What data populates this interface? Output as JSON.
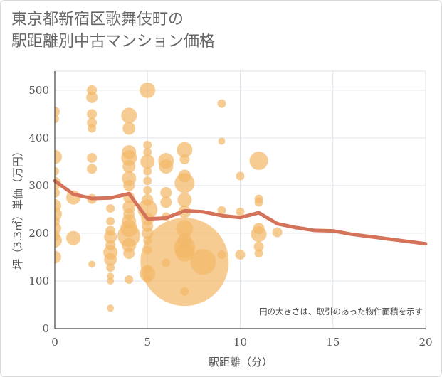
{
  "chart_data": {
    "type": "scatter",
    "title_lines": [
      "東京都新宿区歌舞伎町の",
      "駅距離別中古マンション価格"
    ],
    "xlabel": "駅距離（分）",
    "ylabel": "坪（3.3㎡）単価（万円）",
    "annotation": "円の大きさは、取引のあった物件面積を示す",
    "xlim": [
      0,
      20
    ],
    "ylim": [
      0,
      540
    ],
    "x_ticks": [
      0,
      5,
      10,
      15,
      20
    ],
    "y_ticks": [
      0,
      100,
      200,
      300,
      400,
      500
    ],
    "grid": true,
    "colors": {
      "bubble": "#f2b96a",
      "line": "#d4735a",
      "grid": "#dfe4ea",
      "axis": "#444444"
    },
    "bubbles": [
      {
        "x": 0,
        "y": 455,
        "s": 7
      },
      {
        "x": 0,
        "y": 440,
        "s": 6
      },
      {
        "x": 0,
        "y": 360,
        "s": 10
      },
      {
        "x": 0,
        "y": 330,
        "s": 6
      },
      {
        "x": 0,
        "y": 305,
        "s": 9
      },
      {
        "x": 0,
        "y": 285,
        "s": 7
      },
      {
        "x": 0,
        "y": 258,
        "s": 9
      },
      {
        "x": 0,
        "y": 240,
        "s": 10
      },
      {
        "x": 0,
        "y": 225,
        "s": 7
      },
      {
        "x": 0,
        "y": 210,
        "s": 9
      },
      {
        "x": 0,
        "y": 195,
        "s": 7
      },
      {
        "x": 0,
        "y": 185,
        "s": 10
      },
      {
        "x": 0,
        "y": 150,
        "s": 9
      },
      {
        "x": 1,
        "y": 275,
        "s": 10
      },
      {
        "x": 1,
        "y": 190,
        "s": 10
      },
      {
        "x": 2,
        "y": 500,
        "s": 7
      },
      {
        "x": 2,
        "y": 485,
        "s": 8
      },
      {
        "x": 2,
        "y": 450,
        "s": 7
      },
      {
        "x": 2,
        "y": 432,
        "s": 7
      },
      {
        "x": 2,
        "y": 420,
        "s": 6
      },
      {
        "x": 2,
        "y": 358,
        "s": 7
      },
      {
        "x": 2,
        "y": 335,
        "s": 7
      },
      {
        "x": 2,
        "y": 272,
        "s": 7
      },
      {
        "x": 2,
        "y": 135,
        "s": 5
      },
      {
        "x": 3,
        "y": 252,
        "s": 6
      },
      {
        "x": 3,
        "y": 225,
        "s": 6
      },
      {
        "x": 3,
        "y": 205,
        "s": 7
      },
      {
        "x": 3,
        "y": 192,
        "s": 9
      },
      {
        "x": 3,
        "y": 175,
        "s": 7
      },
      {
        "x": 3,
        "y": 160,
        "s": 10
      },
      {
        "x": 3,
        "y": 145,
        "s": 9
      },
      {
        "x": 3,
        "y": 128,
        "s": 6
      },
      {
        "x": 3,
        "y": 110,
        "s": 5
      },
      {
        "x": 3,
        "y": 100,
        "s": 5
      },
      {
        "x": 3,
        "y": 43,
        "s": 5
      },
      {
        "x": 4,
        "y": 447,
        "s": 11
      },
      {
        "x": 4,
        "y": 420,
        "s": 9
      },
      {
        "x": 4,
        "y": 370,
        "s": 10
      },
      {
        "x": 4,
        "y": 358,
        "s": 11
      },
      {
        "x": 4,
        "y": 340,
        "s": 9
      },
      {
        "x": 4,
        "y": 315,
        "s": 10
      },
      {
        "x": 4,
        "y": 300,
        "s": 8
      },
      {
        "x": 4,
        "y": 275,
        "s": 8
      },
      {
        "x": 4,
        "y": 255,
        "s": 9
      },
      {
        "x": 4,
        "y": 240,
        "s": 8
      },
      {
        "x": 4,
        "y": 225,
        "s": 10
      },
      {
        "x": 4,
        "y": 210,
        "s": 12
      },
      {
        "x": 4,
        "y": 195,
        "s": 16
      },
      {
        "x": 4,
        "y": 175,
        "s": 10
      },
      {
        "x": 4,
        "y": 158,
        "s": 8
      },
      {
        "x": 4,
        "y": 103,
        "s": 6
      },
      {
        "x": 5,
        "y": 500,
        "s": 11
      },
      {
        "x": 5,
        "y": 385,
        "s": 6
      },
      {
        "x": 5,
        "y": 370,
        "s": 6
      },
      {
        "x": 5,
        "y": 350,
        "s": 10
      },
      {
        "x": 5,
        "y": 330,
        "s": 6
      },
      {
        "x": 5,
        "y": 310,
        "s": 6
      },
      {
        "x": 5,
        "y": 290,
        "s": 6
      },
      {
        "x": 5,
        "y": 270,
        "s": 8
      },
      {
        "x": 5,
        "y": 250,
        "s": 14
      },
      {
        "x": 5,
        "y": 230,
        "s": 9
      },
      {
        "x": 5,
        "y": 215,
        "s": 8
      },
      {
        "x": 5,
        "y": 200,
        "s": 8
      },
      {
        "x": 5,
        "y": 185,
        "s": 6
      },
      {
        "x": 5,
        "y": 165,
        "s": 6
      },
      {
        "x": 5,
        "y": 125,
        "s": 6
      },
      {
        "x": 5,
        "y": 115,
        "s": 11
      },
      {
        "x": 5,
        "y": 105,
        "s": 6
      },
      {
        "x": 6,
        "y": 352,
        "s": 11
      },
      {
        "x": 6,
        "y": 340,
        "s": 10
      },
      {
        "x": 6,
        "y": 285,
        "s": 8
      },
      {
        "x": 6,
        "y": 265,
        "s": 8
      },
      {
        "x": 6,
        "y": 235,
        "s": 6
      },
      {
        "x": 6,
        "y": 138,
        "s": 6
      },
      {
        "x": 7,
        "y": 375,
        "s": 11
      },
      {
        "x": 7,
        "y": 355,
        "s": 7
      },
      {
        "x": 7,
        "y": 320,
        "s": 9
      },
      {
        "x": 7,
        "y": 305,
        "s": 14
      },
      {
        "x": 7,
        "y": 270,
        "s": 10
      },
      {
        "x": 7,
        "y": 245,
        "s": 9
      },
      {
        "x": 7,
        "y": 210,
        "s": 12
      },
      {
        "x": 7,
        "y": 185,
        "s": 10
      },
      {
        "x": 7,
        "y": 170,
        "s": 15
      },
      {
        "x": 7,
        "y": 160,
        "s": 13
      },
      {
        "x": 7,
        "y": 140,
        "s": 62
      },
      {
        "x": 7,
        "y": 78,
        "s": 6
      },
      {
        "x": 8,
        "y": 140,
        "s": 18
      },
      {
        "x": 9,
        "y": 472,
        "s": 6
      },
      {
        "x": 9,
        "y": 393,
        "s": 5
      },
      {
        "x": 9,
        "y": 248,
        "s": 6
      },
      {
        "x": 9,
        "y": 155,
        "s": 6
      },
      {
        "x": 10,
        "y": 320,
        "s": 6
      },
      {
        "x": 10,
        "y": 245,
        "s": 6
      },
      {
        "x": 10,
        "y": 155,
        "s": 7
      },
      {
        "x": 11,
        "y": 352,
        "s": 13
      },
      {
        "x": 11,
        "y": 272,
        "s": 6
      },
      {
        "x": 11,
        "y": 265,
        "s": 6
      },
      {
        "x": 11,
        "y": 210,
        "s": 8
      },
      {
        "x": 11,
        "y": 198,
        "s": 11
      },
      {
        "x": 11,
        "y": 172,
        "s": 7
      },
      {
        "x": 11,
        "y": 158,
        "s": 6
      },
      {
        "x": 12,
        "y": 202,
        "s": 7
      }
    ],
    "line": {
      "x": [
        0,
        1,
        2,
        3,
        4,
        5,
        6,
        7,
        8,
        9,
        10,
        11,
        12,
        13,
        14,
        15,
        16,
        17,
        18,
        19,
        20
      ],
      "y": [
        310,
        282,
        273,
        274,
        283,
        230,
        232,
        247,
        245,
        237,
        233,
        243,
        220,
        212,
        206,
        205,
        198,
        193,
        188,
        183,
        178
      ]
    }
  }
}
